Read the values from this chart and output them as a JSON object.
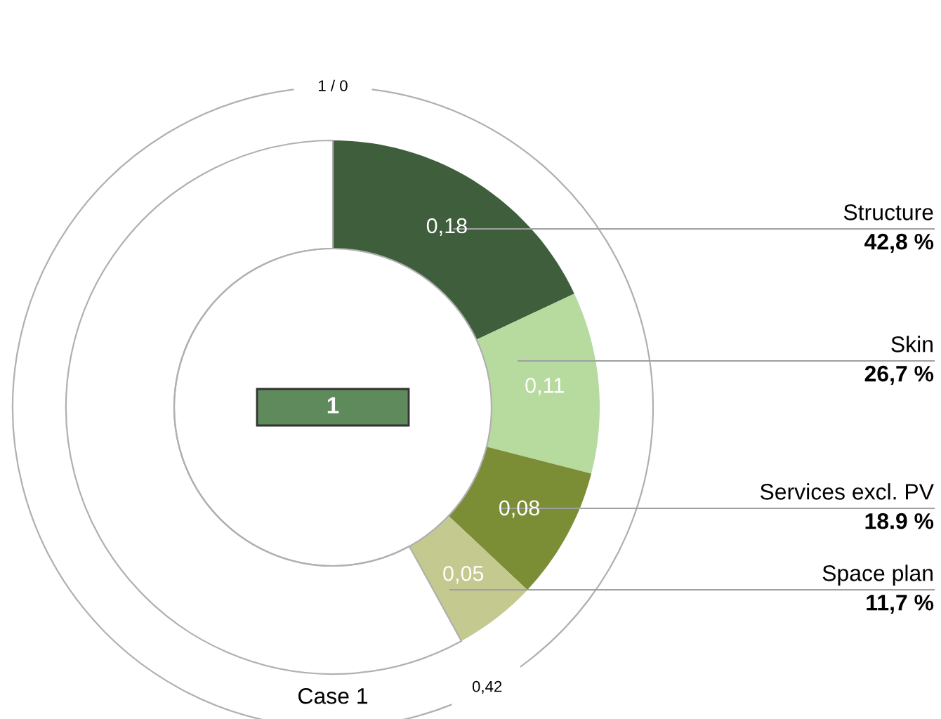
{
  "chart_data": {
    "type": "donut",
    "categories": [
      "Structure",
      "Skin",
      "Services excl. PV",
      "Space plan",
      null
    ],
    "values": [
      0.18,
      0.11,
      0.08,
      0.05,
      0.58
    ],
    "colors": [
      "#3f5e3c",
      "#b7da9f",
      "#7b8d35",
      "#c3c98f",
      "#ffffff"
    ],
    "value_labels": [
      "0,18",
      "0,11",
      "0,08",
      "0,05",
      null
    ],
    "annotations": [
      "42,8 %",
      "26,7 %",
      "18.9 %",
      "11,7 %",
      "1 / 0",
      "0,42",
      "1",
      "Case 1"
    ]
  }
}
